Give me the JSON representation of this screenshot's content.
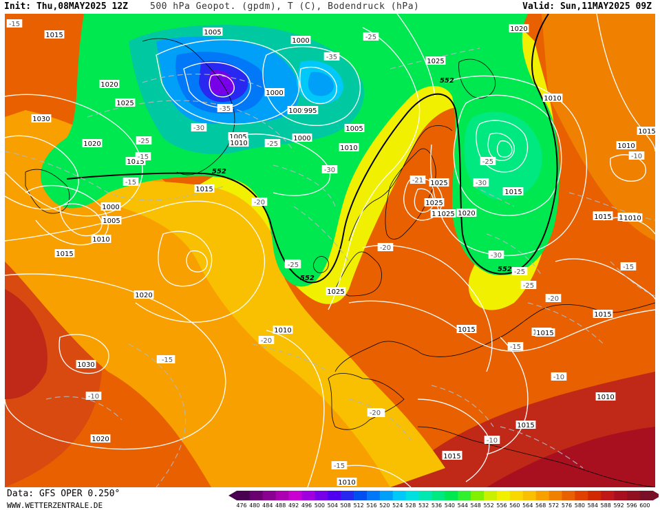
{
  "header": {
    "init": "Init: Thu,08MAY2025 12Z",
    "title": "500 hPa Geopot. (gpdm), T (C), Bodendruck (hPa)",
    "valid": "Valid: Sun,11MAY2025 09Z"
  },
  "footer": {
    "source": "Data: GFS OPER 0.250°",
    "site": "WWW.WETTERZENTRALE.DE"
  },
  "legend": {
    "values": [
      "476",
      "480",
      "484",
      "488",
      "492",
      "496",
      "500",
      "504",
      "508",
      "512",
      "516",
      "520",
      "524",
      "528",
      "532",
      "536",
      "540",
      "544",
      "548",
      "552",
      "556",
      "560",
      "564",
      "568",
      "572",
      "576",
      "580",
      "584",
      "588",
      "592",
      "596",
      "600"
    ],
    "colors": [
      "#4a0050",
      "#6a0070",
      "#8a0090",
      "#aa00b0",
      "#c800d0",
      "#a000e0",
      "#7800e8",
      "#5000f0",
      "#2828f0",
      "#0050f0",
      "#0078f8",
      "#00a0f8",
      "#00c8f8",
      "#00e0e0",
      "#00e8b0",
      "#00e880",
      "#00e850",
      "#30f030",
      "#80f000",
      "#c8f000",
      "#f0f000",
      "#f8d800",
      "#f8c000",
      "#f8a000",
      "#f08000",
      "#e86000",
      "#e04000",
      "#d02800",
      "#c01818",
      "#a81020",
      "#901020",
      "#781028"
    ]
  },
  "map": {
    "geopotential_label": "552",
    "pressure_labels": [
      "1015",
      "1005",
      "1000",
      "1000",
      "1020",
      "1025",
      "1020",
      "1025",
      "1010",
      "1005",
      "1000",
      "1025",
      "1005",
      "1010",
      "995",
      "1005",
      "1030",
      "1025",
      "1020",
      "1015",
      "1010",
      "1010",
      "1015",
      "1015",
      "1020",
      "1000",
      "1005",
      "1010",
      "1015",
      "1025",
      "1025",
      "1020",
      "1015",
      "1010",
      "1010",
      "1015",
      "1015",
      "1030",
      "1020",
      "1025",
      "1010",
      "1015",
      "1015",
      "1010",
      "1010",
      "1015",
      "1015",
      "1015",
      "1015",
      "1015",
      "1015"
    ],
    "temperature_labels": [
      "-15",
      "-25",
      "-35",
      "-30",
      "-35",
      "-25",
      "-25",
      "-25",
      "-30",
      "-15",
      "-20",
      "-21",
      "-25",
      "-30",
      "-25",
      "-20",
      "-25",
      "-30",
      "-20",
      "-15",
      "-20",
      "-15",
      "-10",
      "-25",
      "-20",
      "-10",
      "-15",
      "-10",
      "-15",
      "-15",
      "-10",
      "-20",
      "-15"
    ]
  }
}
